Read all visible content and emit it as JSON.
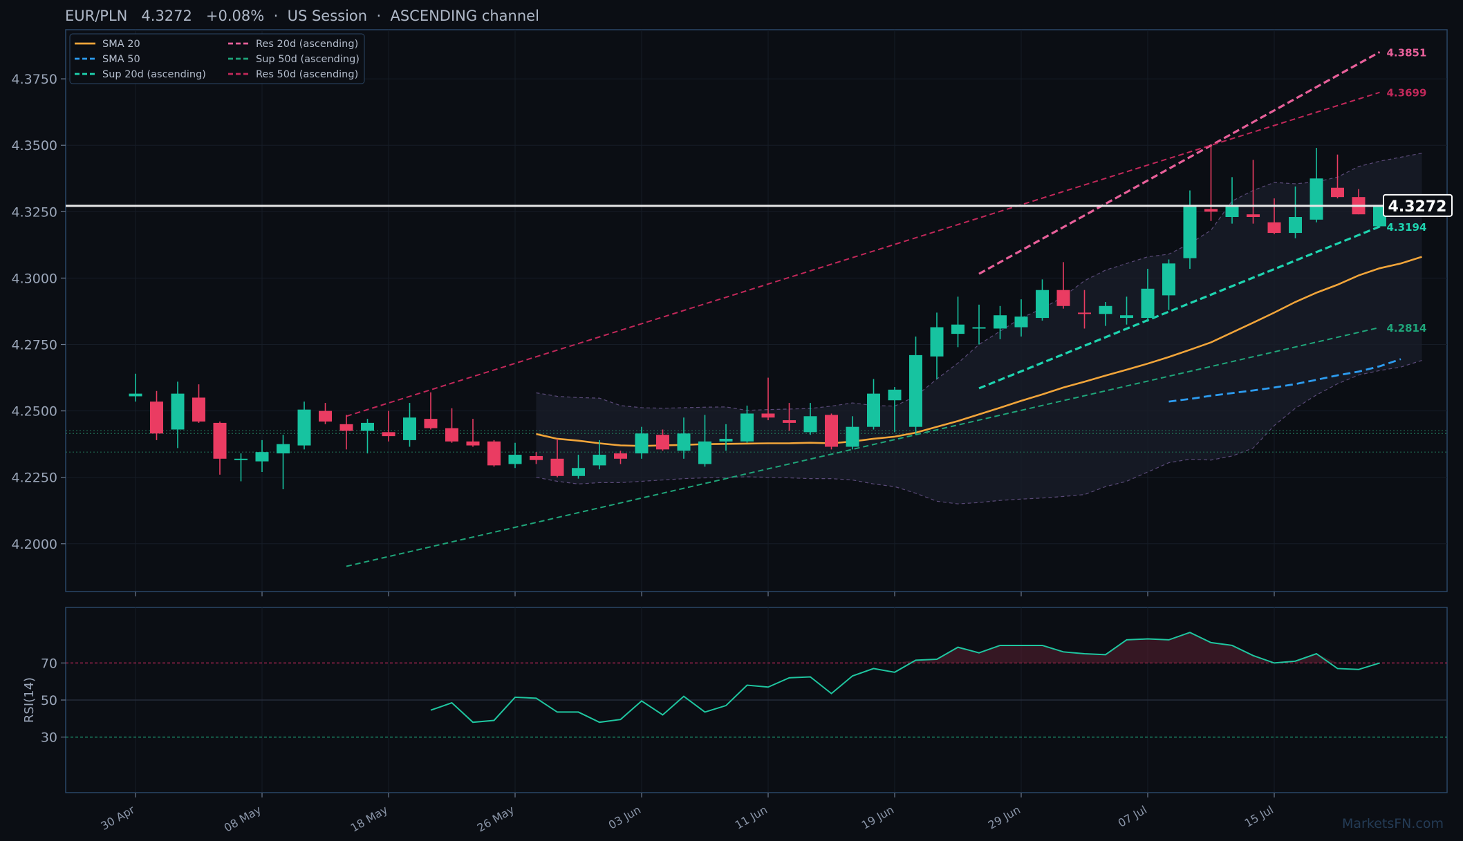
{
  "header": {
    "title": "EUR/PLN   4.3272   +0.08%  ·  US Session  ·  ASCENDING channel"
  },
  "watermark": "MarketsFN.com",
  "colors": {
    "background": "#0b0e14",
    "panel_border": "#2b4766",
    "up": "#17c3a0",
    "down": "#ea3c62",
    "sma20": "#f2a53a",
    "sma50": "#2d9cf0",
    "sup20": "#1ed4b0",
    "res20": "#e8609a",
    "sup50": "#1fa57a",
    "res50": "#c2285a",
    "last_price": "#e8e8e8",
    "rsi": "#1fc6a0",
    "rsi_overbought": "#c2285a",
    "rsi_oversold": "#1fa57a"
  },
  "chart_data": {
    "type": "candlestick",
    "symbol": "EUR/PLN",
    "last_price": "4.3272",
    "change": "+0.08%",
    "session": "US Session",
    "channel": "ASCENDING channel",
    "ylim": [
      4.182,
      4.3935
    ],
    "yticks": [
      "4.2000",
      "4.2250",
      "4.2500",
      "4.2750",
      "4.3000",
      "4.3250",
      "4.3500",
      "4.3750"
    ],
    "xticks": [
      {
        "i": 0,
        "label": "30 Apr"
      },
      {
        "i": 6,
        "label": "08 May"
      },
      {
        "i": 12,
        "label": "18 May"
      },
      {
        "i": 18,
        "label": "26 May"
      },
      {
        "i": 24,
        "label": "03 Jun"
      },
      {
        "i": 30,
        "label": "11 Jun"
      },
      {
        "i": 36,
        "label": "19 Jun"
      },
      {
        "i": 42,
        "label": "29 Jun"
      },
      {
        "i": 48,
        "label": "07 Jul"
      },
      {
        "i": 54,
        "label": "15 Jul"
      }
    ],
    "candles": [
      [
        4.2555,
        4.2565,
        4.264,
        4.2535
      ],
      [
        4.2535,
        4.2415,
        4.2575,
        4.239
      ],
      [
        4.243,
        4.2565,
        4.261,
        4.236
      ],
      [
        4.255,
        4.246,
        4.26,
        4.2455
      ],
      [
        4.2455,
        4.232,
        4.246,
        4.226
      ],
      [
        4.2315,
        4.232,
        4.234,
        4.2235
      ],
      [
        4.231,
        4.2345,
        4.239,
        4.227
      ],
      [
        4.234,
        4.2375,
        4.241,
        4.2205
      ],
      [
        4.237,
        4.2505,
        4.2535,
        4.2355
      ],
      [
        4.25,
        4.246,
        4.253,
        4.245
      ],
      [
        4.245,
        4.2425,
        4.2485,
        4.2355
      ],
      [
        4.2425,
        4.2455,
        4.247,
        4.234
      ],
      [
        4.242,
        4.2405,
        4.25,
        4.2385
      ],
      [
        4.239,
        4.2475,
        4.253,
        4.2365
      ],
      [
        4.247,
        4.2435,
        4.257,
        4.243
      ],
      [
        4.2435,
        4.2385,
        4.251,
        4.238
      ],
      [
        4.2385,
        4.237,
        4.247,
        4.2365
      ],
      [
        4.2385,
        4.2295,
        4.239,
        4.229
      ],
      [
        4.23,
        4.2335,
        4.238,
        4.2285
      ],
      [
        4.233,
        4.2315,
        4.2345,
        4.23
      ],
      [
        4.232,
        4.2255,
        4.2395,
        4.225
      ],
      [
        4.2255,
        4.2285,
        4.2335,
        4.2245
      ],
      [
        4.2295,
        4.2335,
        4.239,
        4.228
      ],
      [
        4.234,
        4.232,
        4.235,
        4.23
      ],
      [
        4.234,
        4.2415,
        4.244,
        4.232
      ],
      [
        4.241,
        4.2355,
        4.243,
        4.235
      ],
      [
        4.235,
        4.2415,
        4.2475,
        4.232
      ],
      [
        4.23,
        4.2385,
        4.2485,
        4.229
      ],
      [
        4.2385,
        4.2395,
        4.245,
        4.235
      ],
      [
        4.2385,
        4.249,
        4.252,
        4.238
      ],
      [
        4.249,
        4.2475,
        4.2625,
        4.2465
      ],
      [
        4.2465,
        4.2455,
        4.253,
        4.2425
      ],
      [
        4.242,
        4.248,
        4.253,
        4.241
      ],
      [
        4.2485,
        4.2365,
        4.249,
        4.2355
      ],
      [
        4.2365,
        4.244,
        4.248,
        4.2355
      ],
      [
        4.244,
        4.2565,
        4.262,
        4.243
      ],
      [
        4.254,
        4.258,
        4.259,
        4.242
      ],
      [
        4.244,
        4.271,
        4.278,
        4.241
      ],
      [
        4.2705,
        4.2815,
        4.287,
        4.262
      ],
      [
        4.279,
        4.2825,
        4.293,
        4.274
      ],
      [
        4.2815,
        4.2815,
        4.29,
        4.275
      ],
      [
        4.281,
        4.286,
        4.2895,
        4.277
      ],
      [
        4.2815,
        4.2855,
        4.292,
        4.278
      ],
      [
        4.285,
        4.2955,
        4.2995,
        4.284
      ],
      [
        4.2955,
        4.2895,
        4.306,
        4.2885
      ],
      [
        4.287,
        4.2865,
        4.2955,
        4.281
      ],
      [
        4.2865,
        4.2895,
        4.291,
        4.282
      ],
      [
        4.285,
        4.286,
        4.293,
        4.2825
      ],
      [
        4.285,
        4.296,
        4.3035,
        4.2835
      ],
      [
        4.2935,
        4.3055,
        4.307,
        4.288
      ],
      [
        4.3075,
        4.3275,
        4.333,
        4.3035
      ],
      [
        4.326,
        4.325,
        4.35,
        4.3215
      ],
      [
        4.323,
        4.327,
        4.338,
        4.3205
      ],
      [
        4.324,
        4.323,
        4.3445,
        4.3205
      ],
      [
        4.321,
        4.317,
        4.33,
        4.3165
      ],
      [
        4.317,
        4.323,
        4.3345,
        4.315
      ],
      [
        4.322,
        4.3375,
        4.349,
        4.321
      ],
      [
        4.334,
        4.3305,
        4.3465,
        4.33
      ],
      [
        4.3305,
        4.324,
        4.3335,
        4.324
      ],
      [
        4.3195,
        4.3272,
        4.3275,
        4.319
      ]
    ],
    "sma20": {
      "start": 19,
      "values": [
        4.2413,
        4.2395,
        4.2388,
        4.2378,
        4.237,
        4.2368,
        4.237,
        4.2372,
        4.2375,
        4.2376,
        4.2377,
        4.2378,
        4.2378,
        4.238,
        4.2378,
        4.2385,
        4.2395,
        4.2403,
        4.2418,
        4.244,
        4.2462,
        4.2487,
        4.2512,
        4.2538,
        4.2562,
        4.2588,
        4.261,
        4.2633,
        4.2655,
        4.2678,
        4.2703,
        4.273,
        4.2758,
        4.2795,
        4.2832,
        4.287,
        4.291,
        4.2945,
        4.2975,
        4.301,
        4.3037,
        4.3055,
        4.308
      ]
    },
    "sma50": {
      "start": 49,
      "values": [
        4.2535,
        4.2545,
        4.2557,
        4.2567,
        4.2577,
        4.2588,
        4.2601,
        4.2617,
        4.2634,
        4.2648,
        4.2668,
        4.2695
      ]
    },
    "bollinger": {
      "start": 19,
      "upper": [
        4.2568,
        4.2555,
        4.255,
        4.2548,
        4.252,
        4.2512,
        4.251,
        4.2512,
        4.2514,
        4.2515,
        4.2502,
        4.2505,
        4.2507,
        4.2509,
        4.2518,
        4.253,
        4.252,
        4.2518,
        4.2555,
        4.262,
        4.268,
        4.275,
        4.28,
        4.285,
        4.2885,
        4.293,
        4.299,
        4.303,
        4.3055,
        4.308,
        4.309,
        4.313,
        4.318,
        4.329,
        4.333,
        4.336,
        4.3355,
        4.3362,
        4.338,
        4.342,
        4.344,
        4.3455,
        4.347
      ],
      "lower": [
        4.225,
        4.2235,
        4.2225,
        4.223,
        4.223,
        4.2235,
        4.224,
        4.2245,
        4.2248,
        4.225,
        4.2252,
        4.225,
        4.2248,
        4.2245,
        4.2245,
        4.224,
        4.2225,
        4.2215,
        4.219,
        4.216,
        4.215,
        4.2155,
        4.2163,
        4.2168,
        4.2172,
        4.2178,
        4.2185,
        4.2215,
        4.2235,
        4.227,
        4.2305,
        4.2318,
        4.2315,
        4.233,
        4.236,
        4.2445,
        4.251,
        4.256,
        4.2602,
        4.2635,
        4.2652,
        4.2665,
        4.269
      ]
    },
    "trendlines": [
      {
        "name": "Res 20d (ascending)",
        "from": [
          40,
          4.3016
        ],
        "to": [
          59,
          4.3851
        ],
        "label": "4.3851",
        "style": "bold"
      },
      {
        "name": "Sup 20d (ascending)",
        "from": [
          40,
          4.2585
        ],
        "to": [
          59,
          4.3194
        ],
        "label": "4.3194",
        "style": "bold"
      },
      {
        "name": "Res 50d (ascending)",
        "from": [
          10,
          4.248
        ],
        "to": [
          59,
          4.3699
        ],
        "label": "4.3699",
        "style": "thin"
      },
      {
        "name": "Sup 50d (ascending)",
        "from": [
          10,
          4.1915
        ],
        "to": [
          59,
          4.2814
        ],
        "label": "4.2814",
        "style": "thin"
      }
    ],
    "horizontal_levels": [
      4.2425,
      4.2415,
      4.2345
    ],
    "legend": [
      {
        "label": "SMA 20",
        "key": "sma20",
        "dash": false
      },
      {
        "label": "SMA 50",
        "key": "sma50",
        "dash": true
      },
      {
        "label": "Sup 20d (ascending)",
        "key": "sup20",
        "dash": true
      },
      {
        "label": "Res 20d (ascending)",
        "key": "res20",
        "dash": true
      },
      {
        "label": "Sup 50d (ascending)",
        "key": "sup50",
        "dash": true
      },
      {
        "label": "Res 50d (ascending)",
        "key": "res50",
        "dash": true
      }
    ],
    "legend_position": "top-left",
    "rsi": {
      "ylabel": "RSI(14)",
      "ylim": [
        0,
        100
      ],
      "yticks": [
        "30",
        "50",
        "70"
      ],
      "overbought": 70,
      "oversold": 30,
      "start": 14,
      "values": [
        44.5,
        48.5,
        38.0,
        39.0,
        51.5,
        51.0,
        43.5,
        43.5,
        38.0,
        39.5,
        49.5,
        42.0,
        52.0,
        43.5,
        47.0,
        58.0,
        57.0,
        62.0,
        62.5,
        53.5,
        63.0,
        67.0,
        65.0,
        71.5,
        72.0,
        78.5,
        75.5,
        79.5,
        79.5,
        79.5,
        76.0,
        75.0,
        74.5,
        82.5,
        83.0,
        82.5,
        86.5,
        81.0,
        79.5,
        74.0,
        70.0,
        71.0,
        75.0,
        67.0,
        66.5,
        70.0
      ]
    }
  }
}
